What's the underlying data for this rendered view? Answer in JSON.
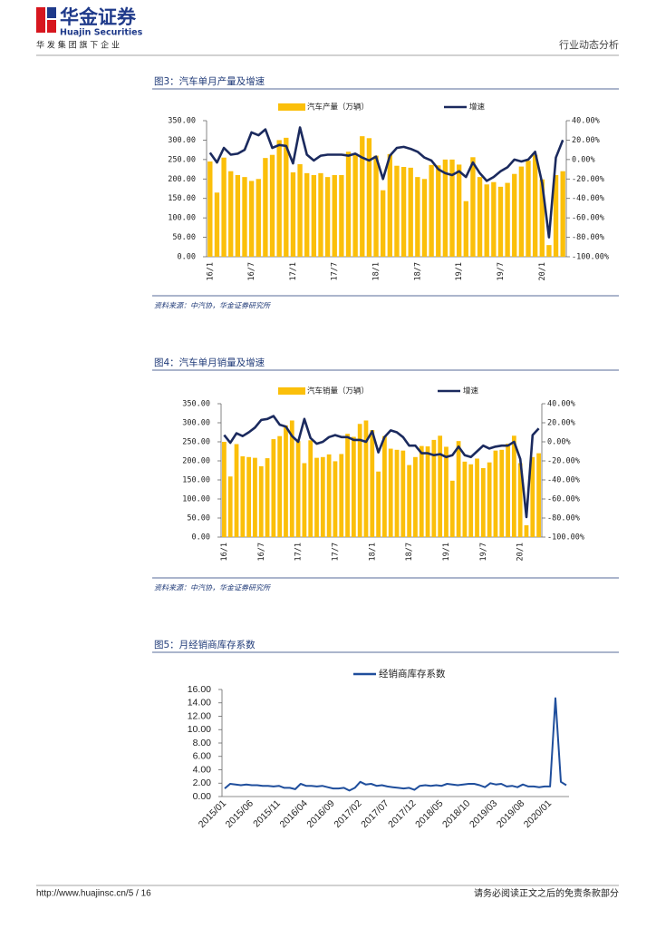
{
  "header": {
    "logo_cn": "华金证券",
    "logo_en": "Huajin Securities",
    "tagline": "华 发 集 团 旗 下 企 业",
    "report_type": "行业动态分析"
  },
  "chart_data": [
    {
      "type": "bar",
      "title": "图3：汽车单月产量及增速",
      "source": "资料来源：中汽协，华金证券研究所",
      "categories": [
        "16/1",
        null,
        null,
        null,
        null,
        null,
        "16/7",
        null,
        null,
        null,
        null,
        null,
        "17/1",
        null,
        null,
        null,
        null,
        null,
        "17/7",
        null,
        null,
        null,
        null,
        null,
        "18/1",
        null,
        null,
        null,
        null,
        null,
        "18/7",
        null,
        null,
        null,
        null,
        null,
        "19/1",
        null,
        null,
        null,
        null,
        null,
        "19/7",
        null,
        null,
        null,
        null,
        null,
        "20/1",
        null,
        null,
        null
      ],
      "series": [
        {
          "name": "汽车产量（万辆）",
          "color": "#fbbf0a",
          "values": [
            245,
            165,
            255,
            220,
            210,
            205,
            195,
            200,
            254,
            262,
            300,
            306,
            217,
            238,
            215,
            210,
            215,
            205,
            210,
            210,
            270,
            265,
            310,
            305,
            260,
            171,
            264,
            234,
            231,
            229,
            205,
            200,
            236,
            235,
            250,
            250,
            237,
            143,
            256,
            205,
            186,
            192,
            180,
            190,
            213,
            232,
            247,
            262,
            199,
            30,
            210,
            220
          ]
        },
        {
          "name": "增速",
          "color": "#1b2a5e",
          "axis": "y2",
          "values": [
            7,
            -3,
            12,
            5,
            6,
            10,
            28,
            25,
            31,
            12,
            15,
            14,
            -4,
            33,
            5,
            -1,
            4,
            5,
            5,
            5,
            4,
            6,
            2,
            -1,
            3,
            -20,
            4,
            12,
            13,
            11,
            8,
            2,
            -1,
            -10,
            -14,
            -16,
            -12,
            -18,
            -3,
            -14,
            -22,
            -18,
            -12,
            -8,
            0,
            -2,
            0,
            8,
            -24,
            -80,
            2,
            20
          ]
        }
      ],
      "ylim": [
        0,
        350
      ],
      "yticks": [
        {
          "value": 0,
          "label": "0.00"
        },
        {
          "value": 50,
          "label": "50.00"
        },
        {
          "value": 100,
          "label": "100.00"
        },
        {
          "value": 150,
          "label": "150.00"
        },
        {
          "value": 200,
          "label": "200.00"
        },
        {
          "value": 250,
          "label": "250.00"
        },
        {
          "value": 300,
          "label": "300.00"
        },
        {
          "value": 350,
          "label": "350.00"
        }
      ],
      "y2lim": [
        -100,
        40
      ],
      "y2ticks": [
        {
          "value": -100,
          "label": "-100.00%"
        },
        {
          "value": -80,
          "label": "-80.00%"
        },
        {
          "value": -60,
          "label": "-60.00%"
        },
        {
          "value": -40,
          "label": "-40.00%"
        },
        {
          "value": -20,
          "label": "-20.00%"
        },
        {
          "value": 0,
          "label": "0.00%"
        },
        {
          "value": 20,
          "label": "20.00%"
        },
        {
          "value": 40,
          "label": "40.00%"
        }
      ]
    },
    {
      "type": "bar",
      "title": "图4：汽车单月销量及增速",
      "source": "资料来源：中汽协，华金证券研究所",
      "categories": [
        "16/1",
        null,
        null,
        null,
        null,
        null,
        "16/7",
        null,
        null,
        null,
        null,
        null,
        "17/1",
        null,
        null,
        null,
        null,
        null,
        "17/7",
        null,
        null,
        null,
        null,
        null,
        "18/1",
        null,
        null,
        null,
        null,
        null,
        "18/7",
        null,
        null,
        null,
        null,
        null,
        "19/1",
        null,
        null,
        null,
        null,
        null,
        "19/7",
        null,
        null,
        null,
        null,
        null,
        "20/1",
        null,
        null,
        null
      ],
      "series": [
        {
          "name": "汽车销量（万辆）",
          "color": "#fbbf0a",
          "values": [
            250,
            159,
            244,
            212,
            210,
            208,
            186,
            207,
            257,
            265,
            293,
            306,
            252,
            194,
            254,
            208,
            210,
            217,
            199,
            218,
            271,
            263,
            297,
            306,
            281,
            172,
            265,
            232,
            229,
            227,
            189,
            210,
            239,
            238,
            255,
            266,
            237,
            148,
            252,
            198,
            191,
            206,
            181,
            196,
            227,
            229,
            245,
            266,
            194,
            31,
            210,
            220
          ]
        },
        {
          "name": "增速",
          "color": "#1b2a5e",
          "axis": "y2",
          "values": [
            7,
            -1,
            9,
            6,
            10,
            15,
            23,
            24,
            27,
            18,
            16,
            6,
            0,
            24,
            4,
            -2,
            0,
            5,
            7,
            5,
            5,
            2,
            2,
            0,
            11,
            -11,
            5,
            12,
            10,
            5,
            -4,
            -4,
            -12,
            -12,
            -14,
            -13,
            -16,
            -14,
            -5,
            -14,
            -16,
            -10,
            -4,
            -7,
            -5,
            -4,
            -4,
            0,
            -18,
            -79,
            7,
            14
          ]
        }
      ],
      "ylim": [
        0,
        350
      ],
      "yticks": [
        {
          "value": 0,
          "label": "0.00"
        },
        {
          "value": 50,
          "label": "50.00"
        },
        {
          "value": 100,
          "label": "100.00"
        },
        {
          "value": 150,
          "label": "150.00"
        },
        {
          "value": 200,
          "label": "200.00"
        },
        {
          "value": 250,
          "label": "250.00"
        },
        {
          "value": 300,
          "label": "300.00"
        },
        {
          "value": 350,
          "label": "350.00"
        }
      ],
      "y2lim": [
        -100,
        40
      ],
      "y2ticks": [
        {
          "value": -100,
          "label": "-100.00%"
        },
        {
          "value": -80,
          "label": "-80.00%"
        },
        {
          "value": -60,
          "label": "-60.00%"
        },
        {
          "value": -40,
          "label": "-40.00%"
        },
        {
          "value": -20,
          "label": "-20.00%"
        },
        {
          "value": 0,
          "label": "0.00%"
        },
        {
          "value": 20,
          "label": "20.00%"
        },
        {
          "value": 40,
          "label": "40.00%"
        }
      ]
    },
    {
      "type": "line",
      "title": "图5：月经销商库存系数",
      "categories": [
        "2015/01",
        null,
        null,
        null,
        null,
        "2015/06",
        null,
        null,
        null,
        null,
        "2015/11",
        null,
        null,
        null,
        null,
        "2016/04",
        null,
        null,
        null,
        null,
        "2016/09",
        null,
        null,
        null,
        null,
        "2017/02",
        null,
        null,
        null,
        null,
        "2017/07",
        null,
        null,
        null,
        null,
        "2017/12",
        null,
        null,
        null,
        null,
        "2018/05",
        null,
        null,
        null,
        null,
        "2018/10",
        null,
        null,
        null,
        null,
        "2019/03",
        null,
        null,
        null,
        null,
        "2019/08",
        null,
        null,
        null,
        null,
        "2020/01",
        null,
        null,
        null
      ],
      "series": [
        {
          "name": "经销商库存系数",
          "color": "#1f4e9c",
          "values": [
            1.2,
            1.9,
            1.8,
            1.7,
            1.8,
            1.7,
            1.7,
            1.6,
            1.6,
            1.5,
            1.6,
            1.3,
            1.3,
            1.1,
            1.9,
            1.6,
            1.6,
            1.5,
            1.6,
            1.4,
            1.2,
            1.2,
            1.3,
            0.9,
            1.3,
            2.2,
            1.8,
            1.9,
            1.6,
            1.7,
            1.5,
            1.4,
            1.3,
            1.2,
            1.3,
            1.0,
            1.6,
            1.7,
            1.6,
            1.7,
            1.6,
            1.9,
            1.8,
            1.7,
            1.8,
            1.9,
            1.9,
            1.7,
            1.4,
            2.0,
            1.8,
            1.9,
            1.5,
            1.6,
            1.4,
            1.8,
            1.5,
            1.5,
            1.4,
            1.5,
            1.5,
            14.7,
            2.2,
            1.7
          ]
        }
      ],
      "ylim": [
        0,
        16
      ],
      "yticks": [
        {
          "value": 0,
          "label": "0.00"
        },
        {
          "value": 2,
          "label": "2.00"
        },
        {
          "value": 4,
          "label": "4.00"
        },
        {
          "value": 6,
          "label": "6.00"
        },
        {
          "value": 8,
          "label": "8.00"
        },
        {
          "value": 10,
          "label": "10.00"
        },
        {
          "value": 12,
          "label": "12.00"
        },
        {
          "value": 14,
          "label": "14.00"
        },
        {
          "value": 16,
          "label": "16.00"
        }
      ]
    }
  ],
  "footer": {
    "url": "http://www.huajinsc.cn/5 / 16",
    "disclaimer": "请务必阅读正文之后的免责条款部分"
  }
}
